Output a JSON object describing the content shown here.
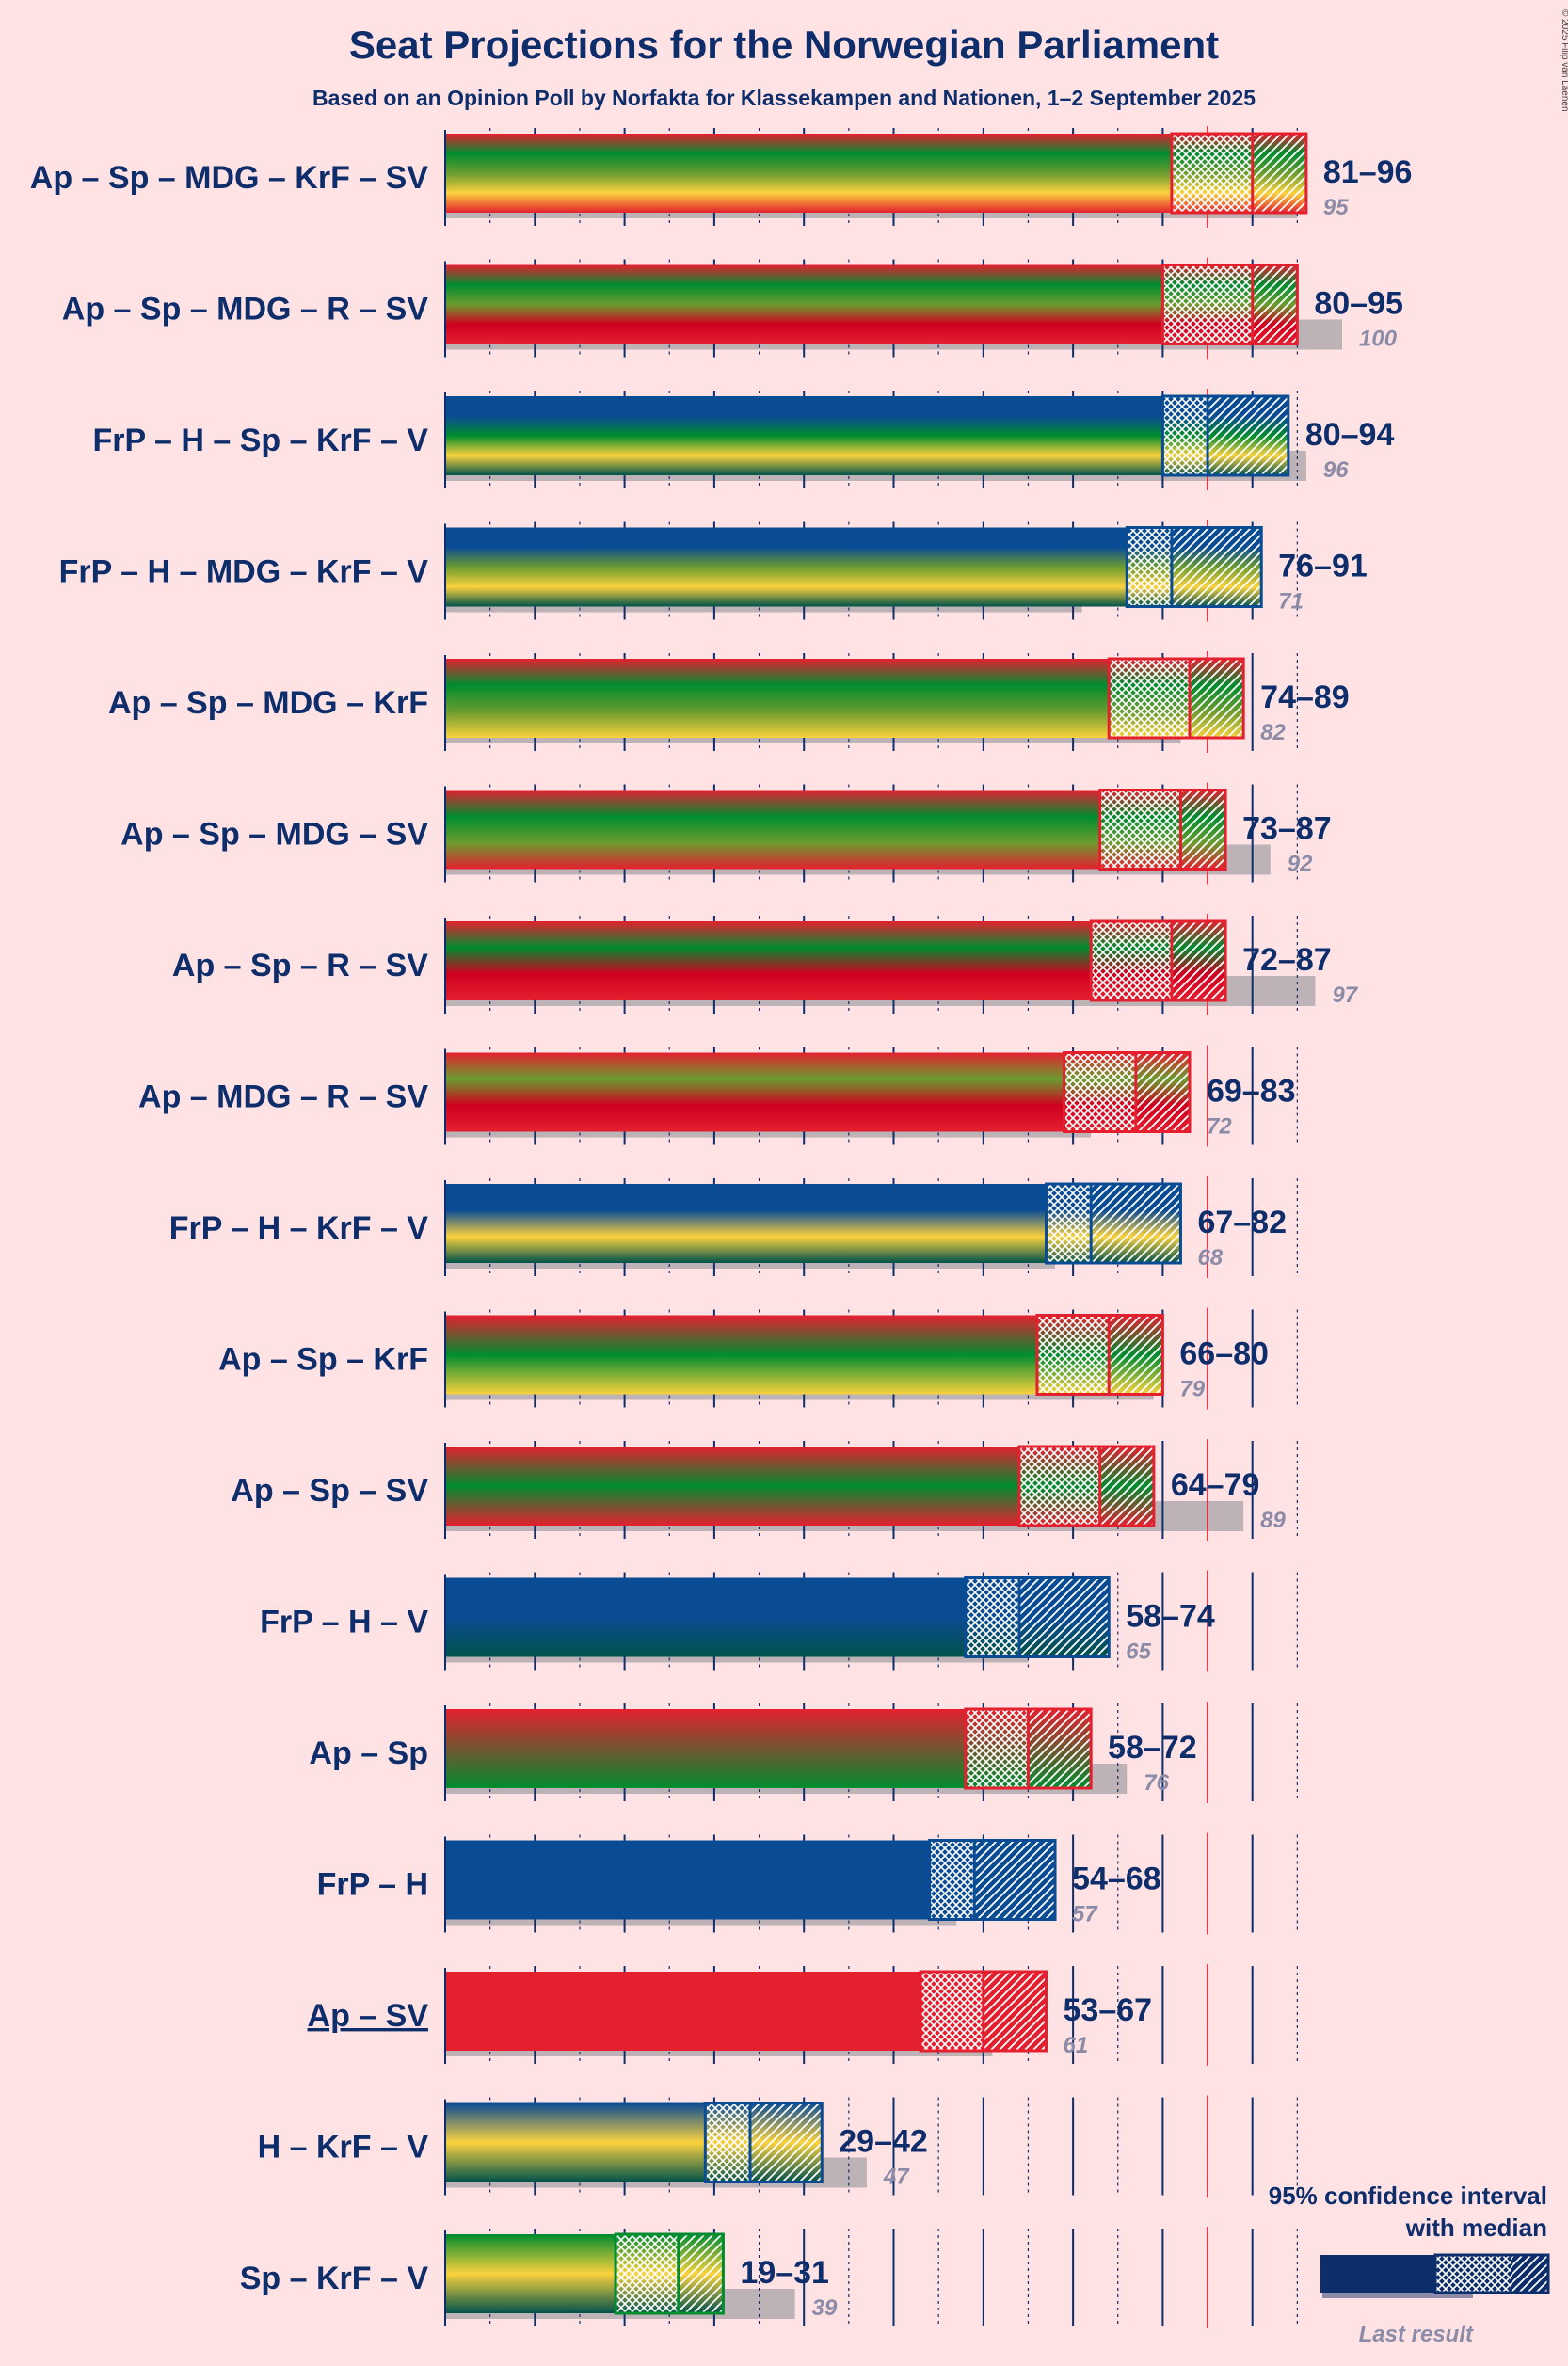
{
  "chart_data": {
    "type": "bar",
    "title": "Seat Projections for the Norwegian Parliament",
    "subtitle": "Based on an Opinion Poll by Norfakta for Klassekampen and Nationen, 1–2 September 2025",
    "copyright": "© 2025 Filip van Laenen",
    "majority": 85,
    "xlim": [
      0,
      100
    ],
    "party_colors": {
      "Ap": "#e4202f",
      "Sp": "#008c2f",
      "MDG": "#6a9c2f",
      "KrF": "#fbd23d",
      "SV": "#e4202f",
      "R": "#d00020",
      "FrP": "#0a4c94",
      "H": "#0a4c94",
      "V": "#00524a"
    },
    "coalitions": [
      {
        "label": "Ap – Sp – MDG – KrF – SV",
        "parties": [
          "Ap",
          "Sp",
          "MDG",
          "KrF",
          "SV"
        ],
        "low": 81,
        "median": 90,
        "high": 96,
        "range_text": "81–96",
        "last": 95,
        "last_text": "95",
        "edge": "#e4202f"
      },
      {
        "label": "Ap – Sp – MDG – R – SV",
        "parties": [
          "Ap",
          "Sp",
          "MDG",
          "R",
          "SV"
        ],
        "low": 80,
        "median": 90,
        "high": 95,
        "range_text": "80–95",
        "last": 100,
        "last_text": "100",
        "edge": "#e4202f"
      },
      {
        "label": "FrP – H – Sp – KrF – V",
        "parties": [
          "FrP",
          "H",
          "Sp",
          "KrF",
          "V"
        ],
        "low": 80,
        "median": 85,
        "high": 94,
        "range_text": "80–94",
        "last": 96,
        "last_text": "96",
        "edge": "#0a4c94"
      },
      {
        "label": "FrP – H – MDG – KrF – V",
        "parties": [
          "FrP",
          "H",
          "MDG",
          "KrF",
          "V"
        ],
        "low": 76,
        "median": 81,
        "high": 91,
        "range_text": "76–91",
        "last": 71,
        "last_text": "71",
        "edge": "#0a4c94"
      },
      {
        "label": "Ap – Sp – MDG – KrF",
        "parties": [
          "Ap",
          "Sp",
          "MDG",
          "KrF"
        ],
        "low": 74,
        "median": 83,
        "high": 89,
        "range_text": "74–89",
        "last": 82,
        "last_text": "82",
        "edge": "#e4202f"
      },
      {
        "label": "Ap – Sp – MDG – SV",
        "parties": [
          "Ap",
          "Sp",
          "MDG",
          "SV"
        ],
        "low": 73,
        "median": 82,
        "high": 87,
        "range_text": "73–87",
        "last": 92,
        "last_text": "92",
        "edge": "#e4202f"
      },
      {
        "label": "Ap – Sp – R – SV",
        "parties": [
          "Ap",
          "Sp",
          "R",
          "SV"
        ],
        "low": 72,
        "median": 81,
        "high": 87,
        "range_text": "72–87",
        "last": 97,
        "last_text": "97",
        "edge": "#e4202f"
      },
      {
        "label": "Ap – MDG – R – SV",
        "parties": [
          "Ap",
          "MDG",
          "R",
          "SV"
        ],
        "low": 69,
        "median": 77,
        "high": 83,
        "range_text": "69–83",
        "last": 72,
        "last_text": "72",
        "edge": "#e4202f"
      },
      {
        "label": "FrP – H – KrF – V",
        "parties": [
          "FrP",
          "H",
          "KrF",
          "V"
        ],
        "low": 67,
        "median": 72,
        "high": 82,
        "range_text": "67–82",
        "last": 68,
        "last_text": "68",
        "edge": "#0a4c94"
      },
      {
        "label": "Ap – Sp – KrF",
        "parties": [
          "Ap",
          "Sp",
          "KrF"
        ],
        "low": 66,
        "median": 74,
        "high": 80,
        "range_text": "66–80",
        "last": 79,
        "last_text": "79",
        "edge": "#e4202f"
      },
      {
        "label": "Ap – Sp – SV",
        "parties": [
          "Ap",
          "Sp",
          "SV"
        ],
        "low": 64,
        "median": 73,
        "high": 79,
        "range_text": "64–79",
        "last": 89,
        "last_text": "89",
        "edge": "#e4202f"
      },
      {
        "label": "FrP – H – V",
        "parties": [
          "FrP",
          "H",
          "V"
        ],
        "low": 58,
        "median": 64,
        "high": 74,
        "range_text": "58–74",
        "last": 65,
        "last_text": "65",
        "edge": "#0a4c94"
      },
      {
        "label": "Ap – Sp",
        "parties": [
          "Ap",
          "Sp"
        ],
        "low": 58,
        "median": 65,
        "high": 72,
        "range_text": "58–72",
        "last": 76,
        "last_text": "76",
        "edge": "#e4202f"
      },
      {
        "label": "FrP – H",
        "parties": [
          "FrP",
          "H"
        ],
        "low": 54,
        "median": 59,
        "high": 68,
        "range_text": "54–68",
        "last": 57,
        "last_text": "57",
        "edge": "#0a4c94"
      },
      {
        "label": "Ap – SV",
        "parties": [
          "Ap",
          "SV"
        ],
        "low": 53,
        "median": 60,
        "high": 67,
        "range_text": "53–67",
        "last": 61,
        "last_text": "61",
        "edge": "#e4202f",
        "underline": true
      },
      {
        "label": "H – KrF – V",
        "parties": [
          "H",
          "KrF",
          "V"
        ],
        "low": 29,
        "median": 34,
        "high": 42,
        "range_text": "29–42",
        "last": 47,
        "last_text": "47",
        "edge": "#0a4c94"
      },
      {
        "label": "Sp – KrF – V",
        "parties": [
          "Sp",
          "KrF",
          "V"
        ],
        "low": 19,
        "median": 26,
        "high": 31,
        "range_text": "19–31",
        "last": 39,
        "last_text": "39",
        "edge": "#008c2f"
      }
    ],
    "legend": {
      "title": "95% confidence interval with median",
      "title_line1": "95% confidence interval",
      "title_line2": "with median",
      "last_label": "Last result"
    }
  }
}
